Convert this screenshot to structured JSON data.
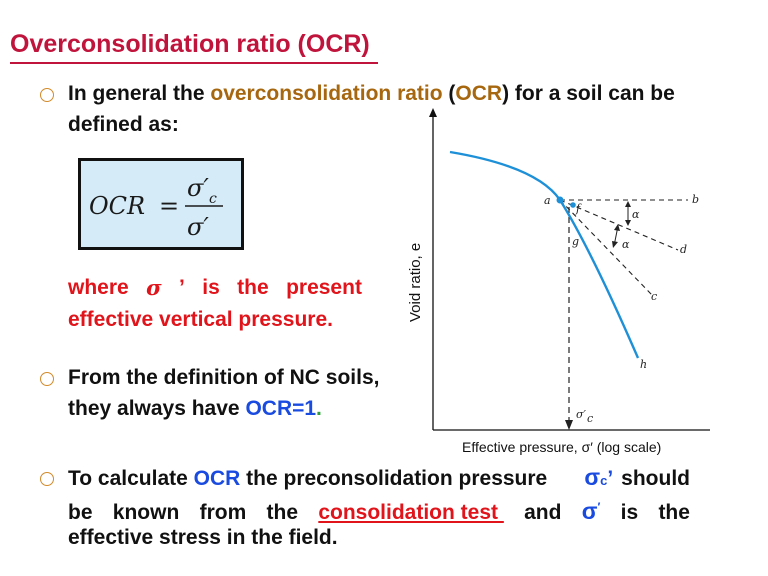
{
  "title": "Overconsolidation ratio (OCR)",
  "bullet1": {
    "pre": "In general the ",
    "term": "overconsolidation ratio",
    "open": " (",
    "abbr": "OCR",
    "close": ")",
    "post": " for a soil can be",
    "line2": "defined as:"
  },
  "formula": {
    "lhs": "OCR",
    "eq": "=",
    "numerator": "σ′",
    "num_sub": "c",
    "denominator": "σ′"
  },
  "definition": {
    "w1": "where",
    "sigma": "σ",
    "prime": "’",
    "w2": "is",
    "w3": "the",
    "w4": "present",
    "line2": "effective vertical pressure."
  },
  "bullet2": {
    "line1": "From the definition of NC soils,",
    "line2_pre": "they always have ",
    "value": "OCR=1",
    "dot": "."
  },
  "bullet3": {
    "l1_pre": "To calculate ",
    "l1_abbr": "OCR",
    "l1_mid": " the preconsolidation pressure",
    "l1_sym": "σ",
    "l1_sub": "c",
    "l1_prime": "’",
    "l1_end": "should",
    "l2_words": [
      "be",
      "known",
      "from",
      "the"
    ],
    "l2_link": "consolidation test ",
    "l2_and": "and",
    "l2_sym": "σ",
    "l2_prime": "′",
    "l2_is": "is",
    "l2_the": "the",
    "l3": "effective stress in the field."
  },
  "figure": {
    "y_axis_label": "Void ratio, e",
    "x_axis_label": "Effective pressure, σ′ (log scale)",
    "points": {
      "a": "a",
      "b": "b",
      "c": "c",
      "d": "d",
      "f": "f",
      "g": "g",
      "h": "h"
    },
    "angle": "α",
    "sigma_c_label": "σ′",
    "sigma_c_sub": "c",
    "curve_color": "#1e90d8"
  }
}
